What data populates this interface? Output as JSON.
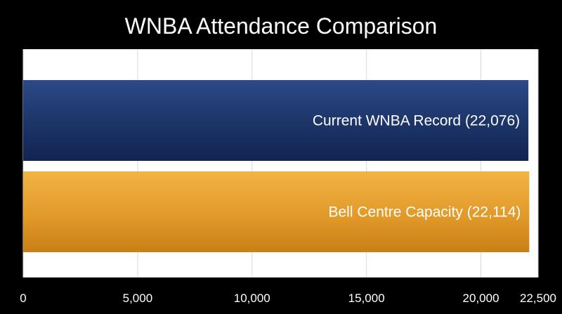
{
  "chart_data": {
    "type": "bar",
    "orientation": "horizontal",
    "title": "WNBA Attendance Comparison",
    "xlabel": "",
    "ylabel": "",
    "xlim": [
      0,
      22500
    ],
    "x_ticks": [
      0,
      5000,
      10000,
      15000,
      20000,
      22500
    ],
    "x_tick_labels": [
      "0",
      "5,000",
      "10,000",
      "15,000",
      "20,000",
      "22,500"
    ],
    "grid": true,
    "legend": "none",
    "bars": [
      {
        "label": "Current WNBA Record (22,076)",
        "value": 22076,
        "color": "#1c3468"
      },
      {
        "label": "Bell Centre Capacity (22,114)",
        "value": 22114,
        "color": "#e29a2a"
      }
    ]
  },
  "colors": {
    "background": "#000000",
    "plot_area": "#ffffff",
    "gridline": "#d9d9d9",
    "text": "#ffffff"
  }
}
